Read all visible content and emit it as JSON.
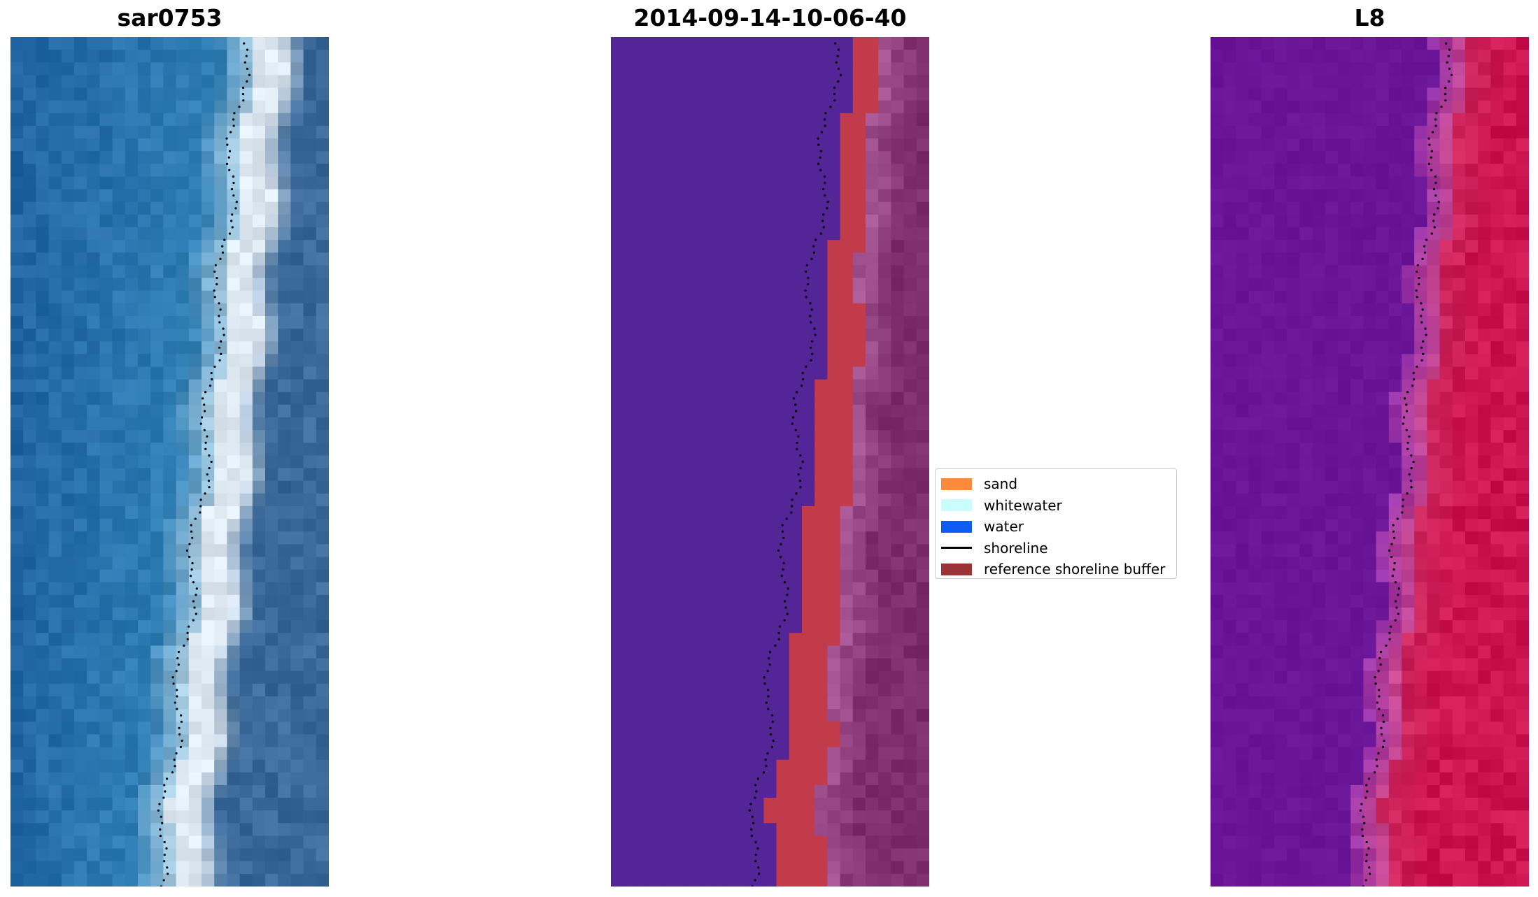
{
  "panels": [
    {
      "title": "sar0753",
      "kind": "rgb"
    },
    {
      "title": "2014-09-14-10-06-40",
      "kind": "classified"
    },
    {
      "title": "L8",
      "kind": "index"
    }
  ],
  "legend": {
    "items": [
      {
        "label": "sand",
        "color": "#fb8a3c"
      },
      {
        "label": "whitewater",
        "color": "#c8fdfb"
      },
      {
        "label": "water",
        "color": "#0e5cf0"
      },
      {
        "label": "shoreline",
        "color": "#000000"
      },
      {
        "label": "reference shoreline buffer",
        "color": "#9b3235"
      }
    ]
  },
  "colors": {
    "rgb_water": "#2f7fb5",
    "rgb_surf": "#dfe9f2",
    "rgb_land": "#3b6a9a",
    "classified_water": "#532596",
    "classified_buffer": "#c23b4a",
    "classified_land": "#7d2c6c",
    "index_water": "#6a1598",
    "index_land": "#cc1450"
  }
}
